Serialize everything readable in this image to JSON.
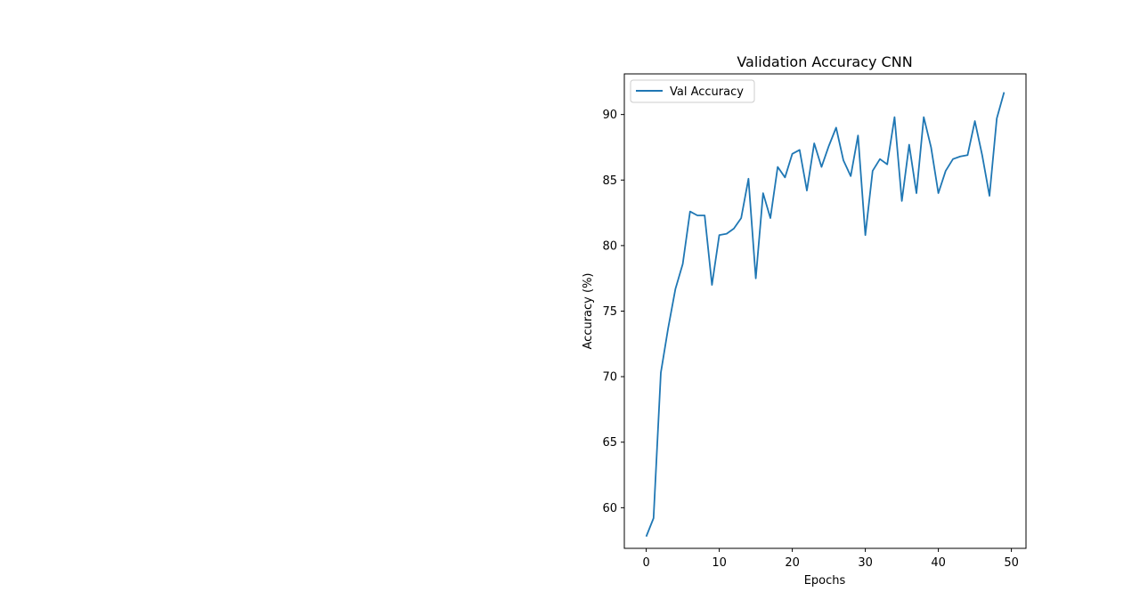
{
  "chart_data": {
    "type": "line",
    "title": "Validation Accuracy CNN",
    "xlabel": "Epochs",
    "ylabel": "Accuracy (%)",
    "xlim": [
      -3,
      52
    ],
    "ylim": [
      56.9,
      93.1
    ],
    "xticks": [
      0,
      10,
      20,
      30,
      40,
      50
    ],
    "yticks": [
      60,
      65,
      70,
      75,
      80,
      85,
      90
    ],
    "grid": false,
    "legend_position": "upper-left",
    "series": [
      {
        "name": "Val Accuracy",
        "color": "#1f77b4",
        "x": [
          0,
          1,
          2,
          3,
          4,
          5,
          6,
          7,
          8,
          9,
          10,
          11,
          12,
          13,
          14,
          15,
          16,
          17,
          18,
          19,
          20,
          21,
          22,
          23,
          24,
          25,
          26,
          27,
          28,
          29,
          30,
          31,
          32,
          33,
          34,
          35,
          36,
          37,
          38,
          39,
          40,
          41,
          42,
          43,
          44,
          45,
          46,
          47,
          48,
          49
        ],
        "y": [
          57.8,
          59.2,
          70.3,
          73.7,
          76.7,
          78.6,
          82.6,
          82.3,
          82.3,
          77.0,
          80.8,
          80.9,
          81.3,
          82.1,
          85.1,
          77.5,
          84.0,
          82.1,
          86.0,
          85.2,
          87.0,
          87.3,
          84.2,
          87.8,
          86.0,
          87.6,
          89.0,
          86.5,
          85.3,
          88.4,
          80.8,
          85.7,
          86.6,
          86.2,
          89.8,
          83.4,
          87.7,
          84.0,
          89.8,
          87.5,
          84.0,
          85.7,
          86.6,
          86.8,
          86.9,
          89.5,
          86.9,
          83.8,
          89.7,
          91.7
        ]
      }
    ]
  }
}
